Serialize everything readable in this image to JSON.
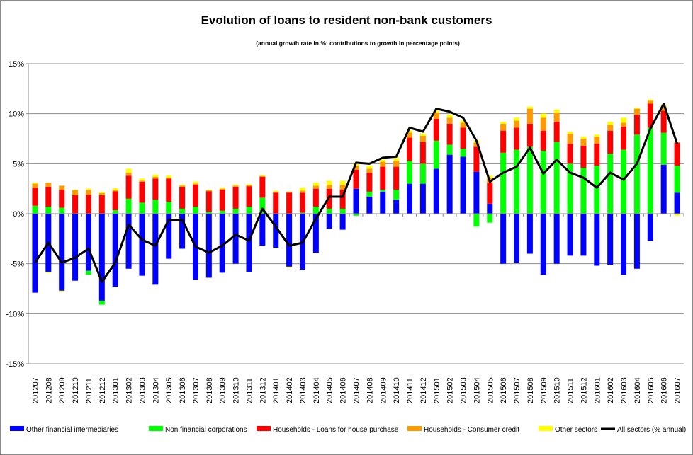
{
  "chart_data": {
    "type": "bar",
    "stacked": true,
    "title": "Evolution of loans to resident non-bank customers",
    "subtitle": "(annual growth rate in %; contributions to growth in percentage points)",
    "xlabel": "",
    "ylabel": "",
    "ylim": [
      -15,
      15
    ],
    "ytick_values": [
      15,
      10,
      5,
      0,
      -5,
      -10,
      -15
    ],
    "ytick_labels": [
      "15%",
      "10%",
      "5%",
      "0%",
      "-5%",
      "-10%",
      "-15%"
    ],
    "grid": true,
    "legend_position": "bottom",
    "categories": [
      "201207",
      "201208",
      "201209",
      "201210",
      "201211",
      "201212",
      "201301",
      "201302",
      "201303",
      "201304",
      "201305",
      "201306",
      "201307",
      "201308",
      "201309",
      "201310",
      "201311",
      "201312",
      "201401",
      "201402",
      "201403",
      "201404",
      "201405",
      "201406",
      "201407",
      "201408",
      "201409",
      "201410",
      "201411",
      "201412",
      "201501",
      "201502",
      "201503",
      "201504",
      "201505",
      "201506",
      "201507",
      "201508",
      "201509",
      "201510",
      "201511",
      "201512",
      "201601",
      "201602",
      "201603",
      "201604",
      "201605",
      "201606",
      "201607"
    ],
    "series": [
      {
        "name": "Other financial intermediaries",
        "kind": "bar",
        "color": "#0000ff",
        "values": [
          -7.9,
          -5.8,
          -7.7,
          -6.7,
          -5.7,
          -8.7,
          -7.3,
          -5.5,
          -6.2,
          -7.1,
          -4.5,
          -3.5,
          -6.6,
          -6.4,
          -5.9,
          -5.0,
          -5.8,
          -3.2,
          -3.4,
          -5.3,
          -5.6,
          -3.9,
          -1.5,
          -1.6,
          2.5,
          1.7,
          2.2,
          1.4,
          3.0,
          3.0,
          4.5,
          5.9,
          5.7,
          4.2,
          1.0,
          -5.0,
          -4.9,
          -4.0,
          -6.1,
          -5.0,
          -4.2,
          -4.2,
          -5.2,
          -5.1,
          -6.1,
          -5.5,
          -2.7,
          4.9,
          2.1
        ]
      },
      {
        "name": "Non financial corporations",
        "kind": "bar",
        "color": "#00ff00",
        "values": [
          0.8,
          0.7,
          0.6,
          0.0,
          -0.4,
          -0.4,
          0.35,
          1.5,
          1.1,
          1.4,
          1.2,
          0.5,
          0.7,
          0.2,
          0.3,
          0.5,
          0.7,
          1.6,
          0.0,
          0.0,
          0.1,
          0.7,
          0.5,
          0.5,
          -0.2,
          0.5,
          0.2,
          1.0,
          2.3,
          2.0,
          2.8,
          1.0,
          0.8,
          -1.3,
          -0.9,
          6.1,
          6.4,
          6.7,
          6.3,
          7.2,
          5.0,
          4.6,
          4.8,
          6.0,
          6.4,
          7.9,
          8.6,
          3.2,
          2.7
        ]
      },
      {
        "name": "Households - Loans for house purchase",
        "kind": "bar",
        "color": "#ff0000",
        "values": [
          1.8,
          2.0,
          1.8,
          1.85,
          1.9,
          1.85,
          1.9,
          2.3,
          2.1,
          2.1,
          2.3,
          2.2,
          2.2,
          2.05,
          2.1,
          2.2,
          2.05,
          2.1,
          2.1,
          2.1,
          2.0,
          1.8,
          2.0,
          1.9,
          1.9,
          1.9,
          2.3,
          2.3,
          2.3,
          2.2,
          2.2,
          2.1,
          2.1,
          2.5,
          2.1,
          2.2,
          2.2,
          2.3,
          2.0,
          2.0,
          2.0,
          2.2,
          2.2,
          2.3,
          2.3,
          2.0,
          2.4,
          2.2,
          2.3
        ]
      },
      {
        "name": "Households - Consumer credit",
        "kind": "bar",
        "color": "#ff9900",
        "values": [
          0.4,
          0.4,
          0.4,
          0.5,
          0.5,
          0.2,
          0.1,
          0.3,
          0.1,
          0.2,
          0.1,
          0.1,
          0.1,
          0.1,
          0.1,
          0.1,
          0.1,
          0.05,
          0.1,
          0.1,
          0.2,
          0.3,
          0.4,
          0.5,
          0.4,
          0.4,
          0.5,
          0.6,
          0.5,
          0.6,
          0.6,
          0.6,
          0.5,
          0.4,
          0.5,
          0.7,
          0.7,
          1.5,
          1.3,
          0.9,
          1.0,
          0.7,
          0.7,
          0.6,
          0.4,
          0.6,
          0.3,
          0.4,
          0.05
        ]
      },
      {
        "name": "Other sectors",
        "kind": "bar",
        "color": "#ffff00",
        "values": [
          0.1,
          -0.1,
          -0.1,
          0.05,
          0.1,
          0.1,
          0.2,
          0.4,
          0.2,
          0.2,
          0.2,
          0.1,
          0.2,
          0.05,
          0.1,
          0.1,
          0.1,
          0.1,
          0.1,
          -0.1,
          0.3,
          0.3,
          0.4,
          0.4,
          0.2,
          0.3,
          0.2,
          0.3,
          0.2,
          0.2,
          0.2,
          0.3,
          0.2,
          0.2,
          0.2,
          0.2,
          0.3,
          0.2,
          0.4,
          0.3,
          0.2,
          0.2,
          0.2,
          0.3,
          0.5,
          0.1,
          0.1,
          0.2,
          -0.2
        ]
      },
      {
        "name": "All sectors (% annual)",
        "kind": "line",
        "color": "#000000",
        "values": [
          -4.9,
          -2.9,
          -4.9,
          -4.4,
          -3.5,
          -6.8,
          -4.9,
          -1.1,
          -2.6,
          -3.2,
          -0.6,
          -0.6,
          -3.3,
          -3.9,
          -3.2,
          -2.1,
          -2.7,
          0.5,
          -1.3,
          -3.2,
          -2.9,
          -0.5,
          1.7,
          1.7,
          5.1,
          5.0,
          5.6,
          5.7,
          8.6,
          8.2,
          10.5,
          10.2,
          9.6,
          7.3,
          3.2,
          4.1,
          4.7,
          6.6,
          4.0,
          5.4,
          4.1,
          3.6,
          2.6,
          4.1,
          3.4,
          5.0,
          8.5,
          11.0,
          7.0
        ]
      }
    ]
  }
}
